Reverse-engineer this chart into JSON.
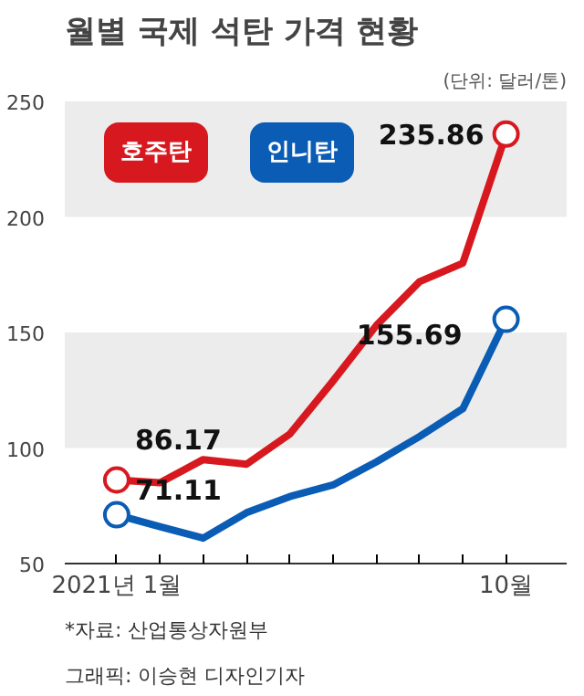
{
  "chart_data": {
    "type": "line",
    "title": "월별 국제 석탄 가격 현황",
    "subtitle": "(단위: 달러/톤)",
    "categories": [
      "2021년 1월",
      null,
      null,
      null,
      null,
      null,
      null,
      null,
      null,
      "10월"
    ],
    "series": [
      {
        "name": "호주탄",
        "color": "#d7191f",
        "values": [
          86.17,
          85,
          95,
          93,
          106,
          129,
          153,
          172,
          180,
          235.86
        ],
        "value_labels": [
          "86.17",
          null,
          null,
          null,
          null,
          null,
          null,
          null,
          null,
          "235.86"
        ]
      },
      {
        "name": "인니탄",
        "color": "#0a5cb5",
        "values": [
          71.11,
          66,
          61,
          72,
          79,
          84,
          94,
          105,
          117,
          155.69
        ],
        "value_labels": [
          "71.11",
          null,
          null,
          null,
          null,
          null,
          null,
          null,
          null,
          "155.69"
        ]
      }
    ],
    "ylim": [
      50,
      250
    ],
    "yticks": [
      50,
      100,
      150,
      200,
      250
    ],
    "bands": [
      {
        "axis": "y",
        "from": 100,
        "to": 150,
        "color": "#ececec"
      },
      {
        "axis": "y",
        "from": 200,
        "to": 250,
        "color": "#ececec"
      }
    ],
    "grid": false,
    "legend": "top left",
    "line_style": "solid",
    "annotations": [
      "*자료: 산업통상자원부",
      "그래픽: 이승현 디자인기자"
    ]
  }
}
